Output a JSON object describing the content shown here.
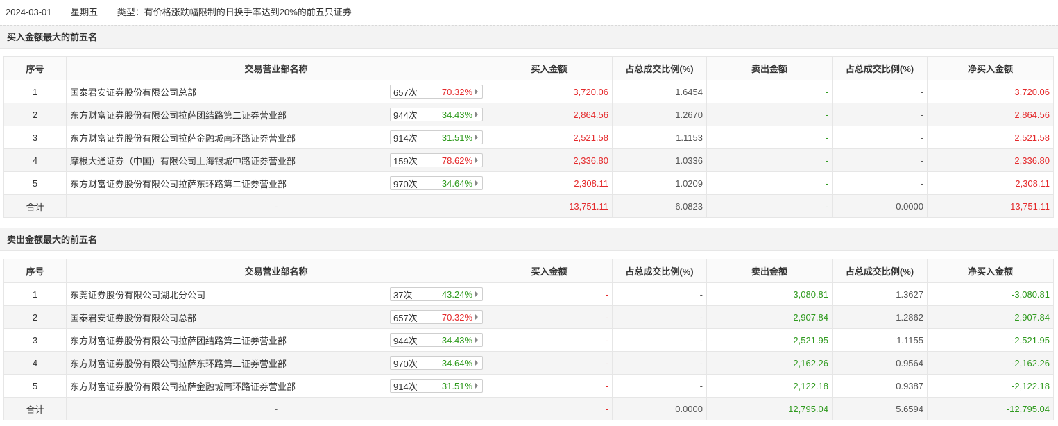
{
  "header": {
    "date": "2024-03-01",
    "weekday": "星期五",
    "type_label": "类型：有价格涨跌幅限制的日换手率达到20%的前五只证券"
  },
  "columns": [
    "序号",
    "交易营业部名称",
    "买入金额",
    "占总成交比例(%)",
    "卖出金额",
    "占总成交比例(%)",
    "净买入金额"
  ],
  "buy_section": {
    "title": "买入金额最大的前五名",
    "rows": [
      {
        "idx": "1",
        "name": "国泰君安证券股份有限公司总部",
        "count": "657次",
        "rate": "70.32%",
        "rate_color": "red",
        "buy": "3,720.06",
        "buy_pct": "1.6454",
        "sell": "-",
        "sell_pct": "-",
        "net": "3,720.06"
      },
      {
        "idx": "2",
        "name": "东方财富证券股份有限公司拉萨团结路第二证券营业部",
        "count": "944次",
        "rate": "34.43%",
        "rate_color": "green",
        "buy": "2,864.56",
        "buy_pct": "1.2670",
        "sell": "-",
        "sell_pct": "-",
        "net": "2,864.56"
      },
      {
        "idx": "3",
        "name": "东方财富证券股份有限公司拉萨金融城南环路证券营业部",
        "count": "914次",
        "rate": "31.51%",
        "rate_color": "green",
        "buy": "2,521.58",
        "buy_pct": "1.1153",
        "sell": "-",
        "sell_pct": "-",
        "net": "2,521.58"
      },
      {
        "idx": "4",
        "name": "摩根大通证券（中国）有限公司上海银城中路证券营业部",
        "count": "159次",
        "rate": "78.62%",
        "rate_color": "red",
        "buy": "2,336.80",
        "buy_pct": "1.0336",
        "sell": "-",
        "sell_pct": "-",
        "net": "2,336.80"
      },
      {
        "idx": "5",
        "name": "东方财富证券股份有限公司拉萨东环路第二证券营业部",
        "count": "970次",
        "rate": "34.64%",
        "rate_color": "green",
        "buy": "2,308.11",
        "buy_pct": "1.0209",
        "sell": "-",
        "sell_pct": "-",
        "net": "2,308.11"
      }
    ],
    "total": {
      "label": "合计",
      "name": "-",
      "buy": "13,751.11",
      "buy_pct": "6.0823",
      "sell": "-",
      "sell_pct": "0.0000",
      "net": "13,751.11"
    }
  },
  "sell_section": {
    "title": "卖出金额最大的前五名",
    "rows": [
      {
        "idx": "1",
        "name": "东莞证券股份有限公司湖北分公司",
        "count": "37次",
        "rate": "43.24%",
        "rate_color": "green",
        "buy": "-",
        "buy_pct": "-",
        "sell": "3,080.81",
        "sell_pct": "1.3627",
        "net": "-3,080.81"
      },
      {
        "idx": "2",
        "name": "国泰君安证券股份有限公司总部",
        "count": "657次",
        "rate": "70.32%",
        "rate_color": "red",
        "buy": "-",
        "buy_pct": "-",
        "sell": "2,907.84",
        "sell_pct": "1.2862",
        "net": "-2,907.84"
      },
      {
        "idx": "3",
        "name": "东方财富证券股份有限公司拉萨团结路第二证券营业部",
        "count": "944次",
        "rate": "34.43%",
        "rate_color": "green",
        "buy": "-",
        "buy_pct": "-",
        "sell": "2,521.95",
        "sell_pct": "1.1155",
        "net": "-2,521.95"
      },
      {
        "idx": "4",
        "name": "东方财富证券股份有限公司拉萨东环路第二证券营业部",
        "count": "970次",
        "rate": "34.64%",
        "rate_color": "green",
        "buy": "-",
        "buy_pct": "-",
        "sell": "2,162.26",
        "sell_pct": "0.9564",
        "net": "-2,162.26"
      },
      {
        "idx": "5",
        "name": "东方财富证券股份有限公司拉萨金融城南环路证券营业部",
        "count": "914次",
        "rate": "31.51%",
        "rate_color": "green",
        "buy": "-",
        "buy_pct": "-",
        "sell": "2,122.18",
        "sell_pct": "0.9387",
        "net": "-2,122.18"
      }
    ],
    "total": {
      "label": "合计",
      "name": "-",
      "buy": "-",
      "buy_pct": "0.0000",
      "sell": "12,795.04",
      "sell_pct": "5.6594",
      "net": "-12,795.04"
    }
  },
  "colors": {
    "up": "#e4292b",
    "down": "#2f9a1e"
  }
}
